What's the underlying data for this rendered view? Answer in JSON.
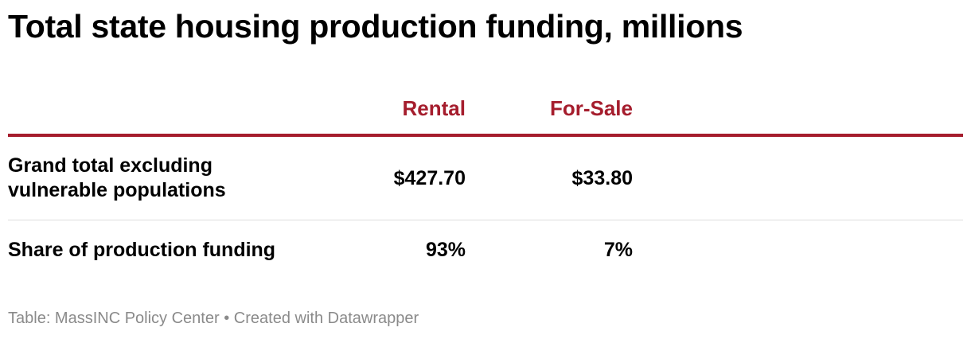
{
  "title": "Total state housing production funding, millions",
  "columns": [
    "",
    "Rental",
    "For-Sale"
  ],
  "rows": [
    {
      "label": "Grand total excluding vulnerable populations",
      "rental": "$427.70",
      "for_sale": "$33.80"
    },
    {
      "label": "Share of production funding",
      "rental": "93%",
      "for_sale": "7%"
    }
  ],
  "footer": {
    "source": "Table: MassINC Policy Center",
    "separator": "•",
    "credit": "Created with Datawrapper"
  },
  "colors": {
    "header_accent": "#a51d2d",
    "footer_text": "#8a8a8a",
    "row_divider": "#dddddd"
  },
  "chart_data": {
    "type": "table",
    "title": "Total state housing production funding, millions",
    "columns": [
      "",
      "Rental",
      "For-Sale"
    ],
    "rows": [
      [
        "Grand total excluding vulnerable populations",
        "$427.70",
        "$33.80"
      ],
      [
        "Share of production funding",
        "93%",
        "7%"
      ]
    ]
  }
}
